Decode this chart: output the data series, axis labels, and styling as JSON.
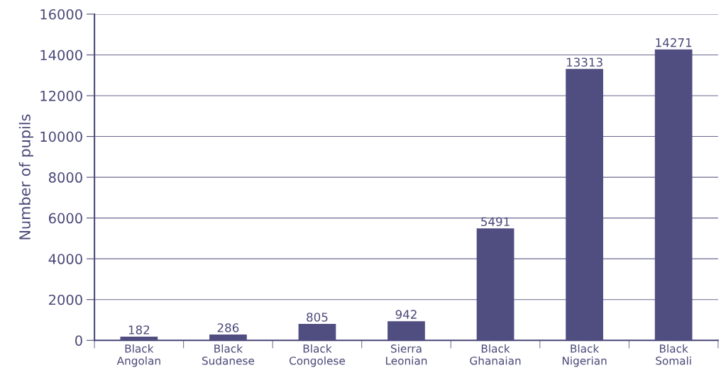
{
  "chart_data": {
    "type": "bar",
    "ylabel": "Number of pupils",
    "categories": [
      "Black\nAngolan",
      "Black\nSudanese",
      "Black\nCongolese",
      "Sierra\nLeonian",
      "Black\nGhanaian",
      "Black\nNigerian",
      "Black\nSomali"
    ],
    "values": [
      182,
      286,
      805,
      942,
      5491,
      13313,
      14271
    ],
    "color": "#504d81",
    "data_labels": true,
    "ylim": [
      0,
      16000
    ],
    "yticks": [
      0,
      2000,
      4000,
      6000,
      8000,
      10000,
      12000,
      14000,
      16000
    ],
    "grid": "y",
    "legend": false
  }
}
